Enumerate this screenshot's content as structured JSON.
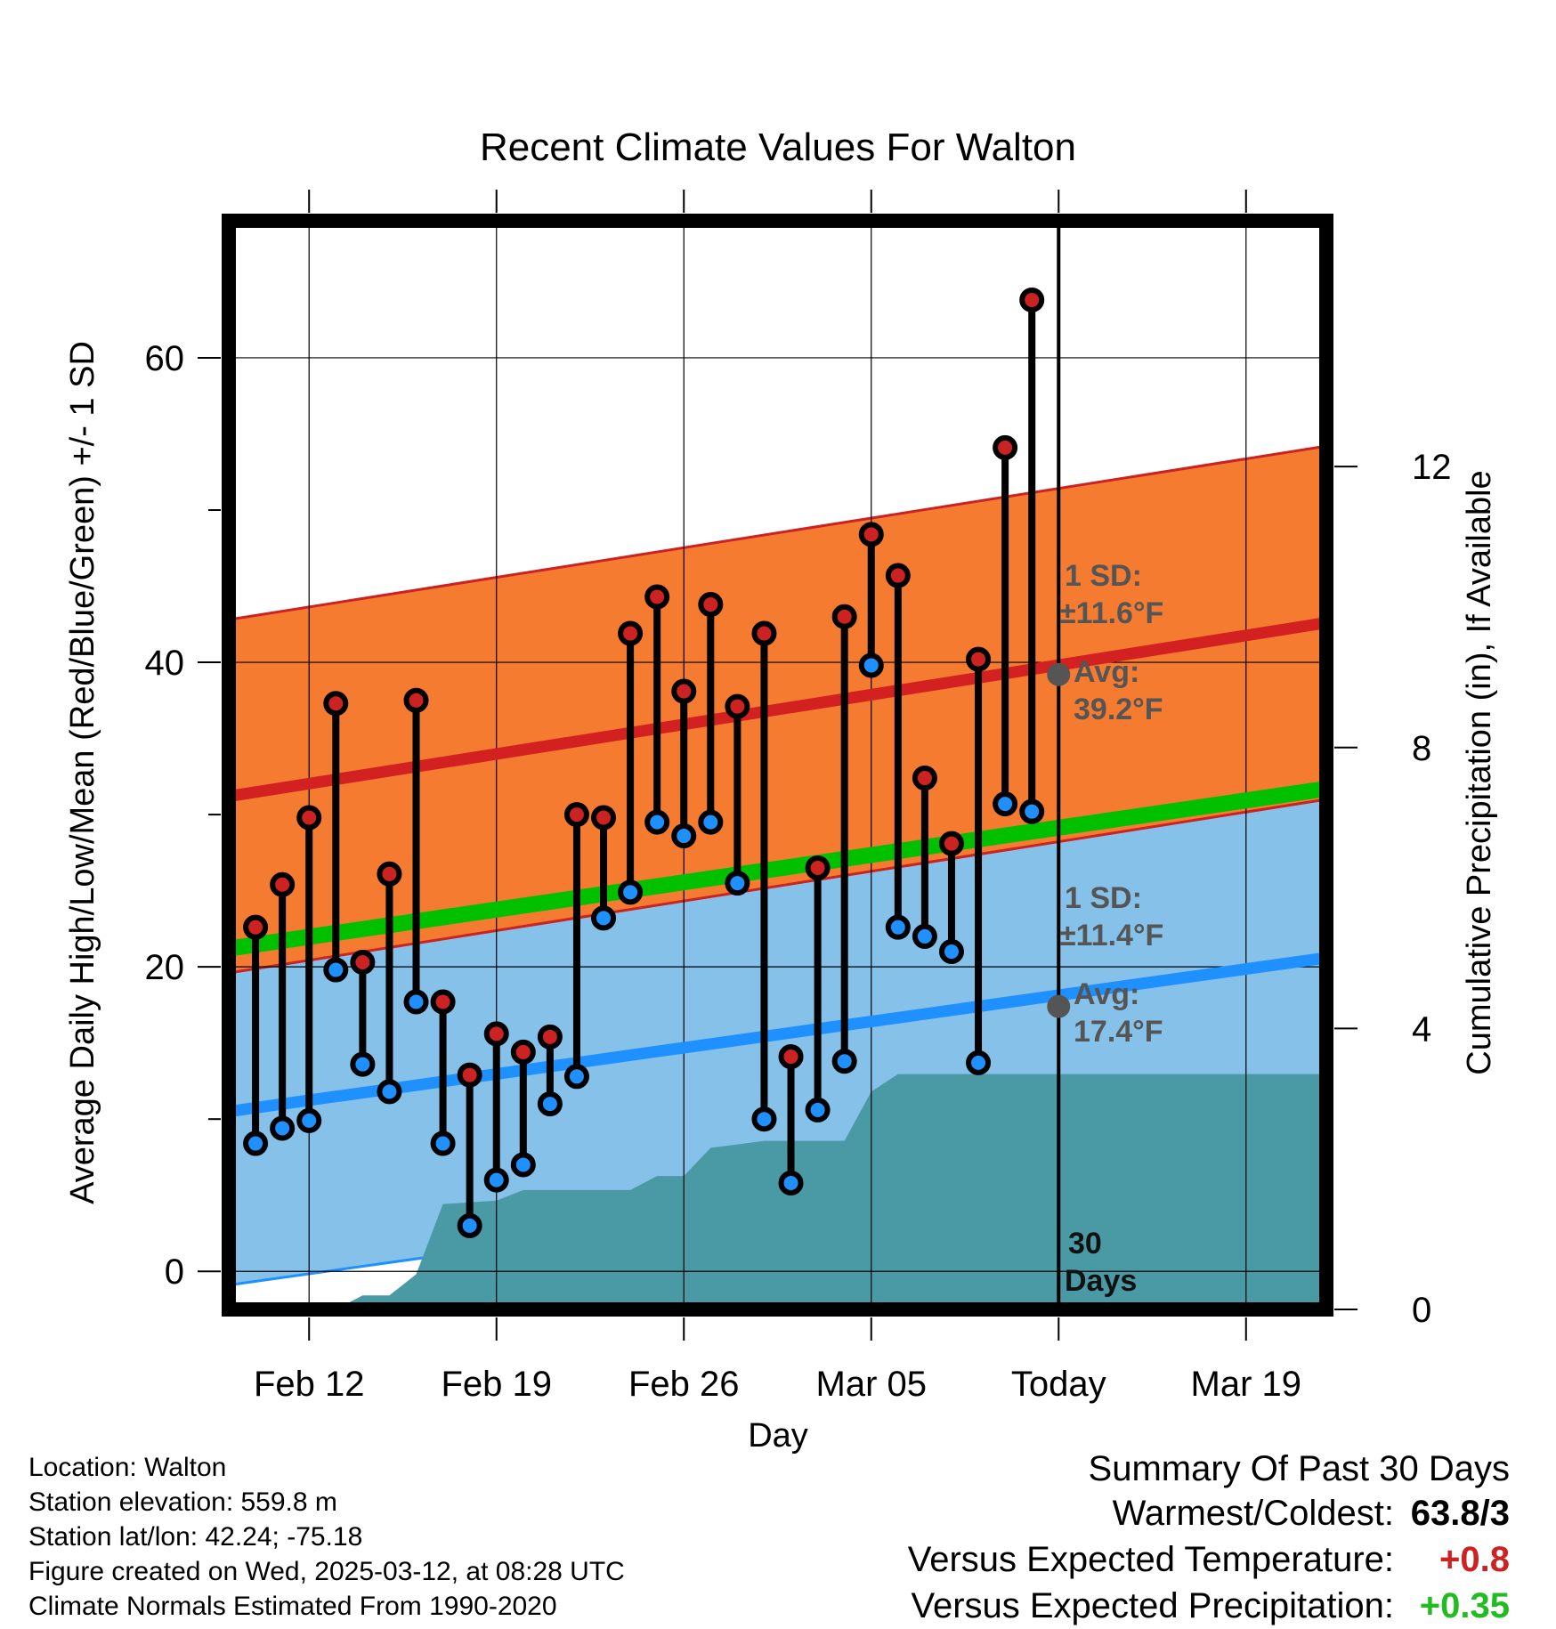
{
  "chart_data": {
    "type": "line",
    "title": "Recent Climate Values For Walton",
    "xlabel": "Day",
    "ylabel": "Average Daily High/Low/Mean (Red/Blue/Green) +/- 1 SD",
    "y2label": "Cumulative Precipitation (in), If Available",
    "x_ticks": [
      "Feb 12",
      "Feb 19",
      "Feb 26",
      "Mar 05",
      "Today",
      "Mar 19"
    ],
    "x_range": [
      "2025-02-09",
      "2025-03-22"
    ],
    "today": "2025-03-12",
    "ylim": [
      -2.5,
      69
    ],
    "yticks": [
      0,
      20,
      40,
      60
    ],
    "y2lim": [
      0,
      15.5
    ],
    "y2ticks": [
      0,
      4,
      8,
      12
    ],
    "grid": true,
    "series": [
      {
        "name": "Daily High",
        "color": "#cc2222",
        "x": [
          "2025-02-10",
          "2025-02-11",
          "2025-02-12",
          "2025-02-13",
          "2025-02-14",
          "2025-02-15",
          "2025-02-16",
          "2025-02-17",
          "2025-02-18",
          "2025-02-19",
          "2025-02-20",
          "2025-02-21",
          "2025-02-22",
          "2025-02-23",
          "2025-02-24",
          "2025-02-25",
          "2025-02-26",
          "2025-02-27",
          "2025-02-28",
          "2025-03-01",
          "2025-03-02",
          "2025-03-03",
          "2025-03-04",
          "2025-03-05",
          "2025-03-06",
          "2025-03-07",
          "2025-03-08",
          "2025-03-09",
          "2025-03-10",
          "2025-03-11"
        ],
        "values": [
          22.6,
          25.4,
          29.8,
          37.3,
          20.3,
          26.1,
          37.5,
          17.7,
          12.9,
          15.6,
          14.4,
          15.4,
          30.0,
          29.8,
          41.9,
          44.3,
          38.1,
          43.8,
          37.1,
          41.9,
          14.1,
          26.5,
          43.0,
          48.4,
          45.7,
          32.4,
          28.1,
          40.2,
          54.1,
          63.8
        ]
      },
      {
        "name": "Daily Low",
        "color": "#1e90ff",
        "x": [
          "2025-02-10",
          "2025-02-11",
          "2025-02-12",
          "2025-02-13",
          "2025-02-14",
          "2025-02-15",
          "2025-02-16",
          "2025-02-17",
          "2025-02-18",
          "2025-02-19",
          "2025-02-20",
          "2025-02-21",
          "2025-02-22",
          "2025-02-23",
          "2025-02-24",
          "2025-02-25",
          "2025-02-26",
          "2025-02-27",
          "2025-02-28",
          "2025-03-01",
          "2025-03-02",
          "2025-03-03",
          "2025-03-04",
          "2025-03-05",
          "2025-03-06",
          "2025-03-07",
          "2025-03-08",
          "2025-03-09",
          "2025-03-10",
          "2025-03-11"
        ],
        "values": [
          8.4,
          9.4,
          9.9,
          19.8,
          13.6,
          11.8,
          17.7,
          8.4,
          3.0,
          6.0,
          7.0,
          11.0,
          12.8,
          23.2,
          24.9,
          29.5,
          28.6,
          29.5,
          25.5,
          10.0,
          5.8,
          10.6,
          13.8,
          39.8,
          22.6,
          22.0,
          21.0,
          13.7,
          30.7,
          30.2
        ]
      },
      {
        "name": "Normal High",
        "color": "#d32020",
        "x": [
          "2025-02-09",
          "2025-03-22"
        ],
        "values": [
          31.2,
          42.6
        ],
        "sd": 11.6
      },
      {
        "name": "Normal Mean",
        "color": "#00c000",
        "x": [
          "2025-02-09",
          "2025-03-22"
        ],
        "values": [
          21.2,
          31.7
        ]
      },
      {
        "name": "Normal Low",
        "color": "#1e90ff",
        "x": [
          "2025-02-09",
          "2025-03-22"
        ],
        "values": [
          10.5,
          20.6
        ],
        "sd": 11.4
      },
      {
        "name": "Cumulative Precipitation",
        "color": "#4a9aa5",
        "axis": "right",
        "x": [
          "2025-02-09",
          "2025-02-13",
          "2025-02-14",
          "2025-02-15",
          "2025-02-16",
          "2025-02-17",
          "2025-02-19",
          "2025-02-20",
          "2025-02-24",
          "2025-02-25",
          "2025-02-26",
          "2025-02-27",
          "2025-02-28",
          "2025-03-01",
          "2025-03-03",
          "2025-03-04",
          "2025-03-05",
          "2025-03-06",
          "2025-03-12",
          "2025-03-22"
        ],
        "values": [
          0.0,
          0.0,
          0.2,
          0.2,
          0.5,
          1.5,
          1.55,
          1.7,
          1.7,
          1.9,
          1.9,
          2.3,
          2.35,
          2.4,
          2.4,
          2.4,
          3.1,
          3.35,
          3.35,
          3.35
        ]
      }
    ],
    "annotations": {
      "high": {
        "sd_label": "1 SD:",
        "sd_value": "±11.6°F",
        "avg_label": "Avg:",
        "avg_value": "39.2°F",
        "value": 39.2
      },
      "low": {
        "sd_label": "1 SD:",
        "sd_value": "±11.4°F",
        "avg_label": "Avg:",
        "avg_value": "17.4°F",
        "value": 17.4
      },
      "period": {
        "line1": "30",
        "line2": "Days"
      }
    }
  },
  "info": {
    "location": "Location: Walton",
    "elevation": "Station elevation: 559.8 m",
    "latlon": "Station lat/lon: 42.24; -75.18",
    "created": "Figure created on Wed, 2025-03-12, at 08:28 UTC",
    "normals": "Climate Normals Estimated From 1990-2020"
  },
  "summary": {
    "title": "Summary Of Past 30 Days",
    "warm_label": "Warmest/Coldest:",
    "warm_value": "63.8/3",
    "temp_label": "Versus Expected Temperature:",
    "temp_value": "+0.8",
    "precip_label": "Versus Expected Precipitation:",
    "precip_value": "+0.35",
    "colors": {
      "temp": "#cc2222",
      "precip": "#22bb22"
    }
  }
}
